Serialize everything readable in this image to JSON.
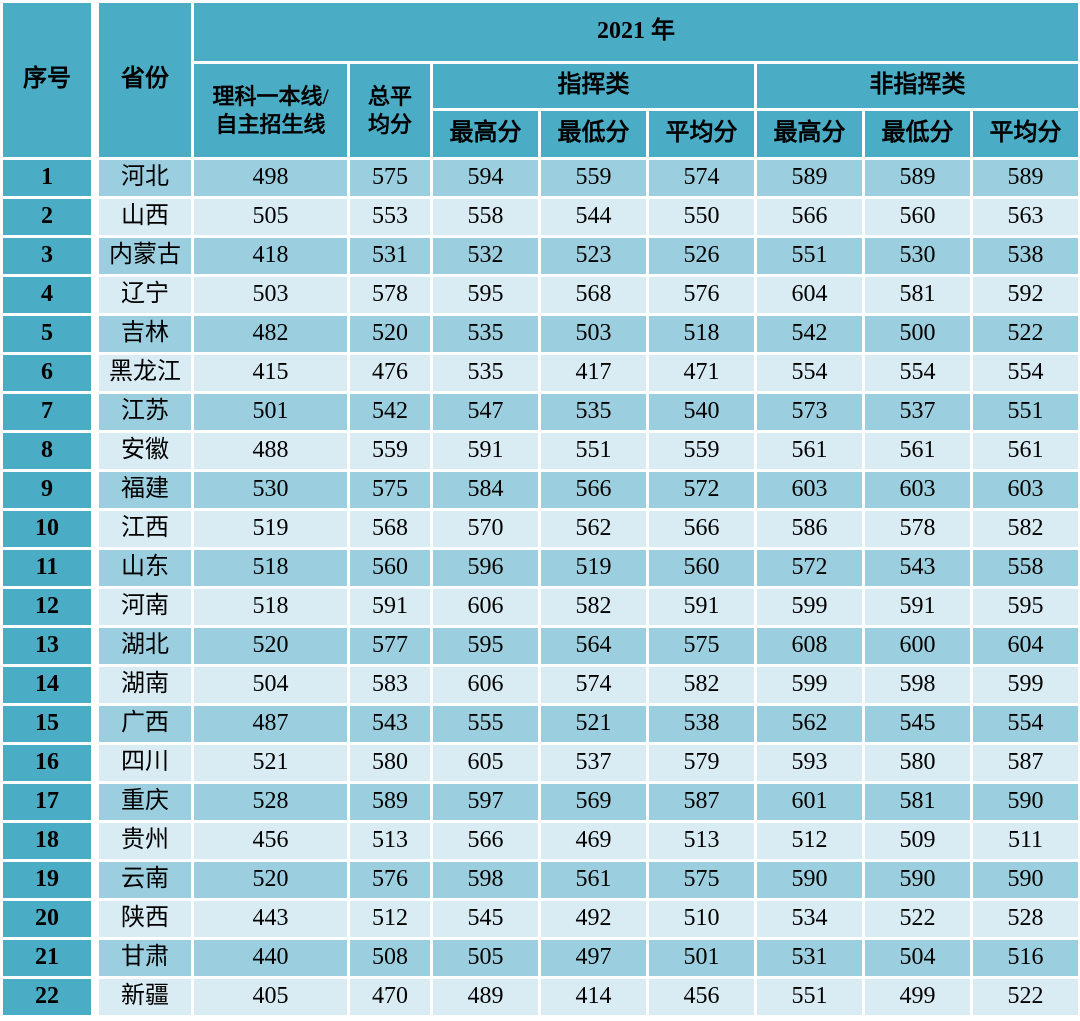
{
  "colors": {
    "header_bg": "#4BACC6",
    "row_odd_bg": "#9BCFDF",
    "row_even_bg": "#D9ECF4",
    "grid_gap": "#FFFFFF",
    "text": "#000000"
  },
  "table": {
    "headers": {
      "index": "序号",
      "province": "省份",
      "year": "2021 年",
      "admission_line_l1": "理科一本线/",
      "admission_line_l2": "自主招生线",
      "total_avg_l1": "总平",
      "total_avg_l2": "均分",
      "command_group": "指挥类",
      "non_command_group": "非指挥类",
      "max": "最高分",
      "min": "最低分",
      "avg": "平均分"
    },
    "rows": [
      {
        "no": "1",
        "province": "河北",
        "values": [
          498,
          575,
          594,
          559,
          574,
          589,
          589,
          589
        ]
      },
      {
        "no": "2",
        "province": "山西",
        "values": [
          505,
          553,
          558,
          544,
          550,
          566,
          560,
          563
        ]
      },
      {
        "no": "3",
        "province": "内蒙古",
        "values": [
          418,
          531,
          532,
          523,
          526,
          551,
          530,
          538
        ]
      },
      {
        "no": "4",
        "province": "辽宁",
        "values": [
          503,
          578,
          595,
          568,
          576,
          604,
          581,
          592
        ]
      },
      {
        "no": "5",
        "province": "吉林",
        "values": [
          482,
          520,
          535,
          503,
          518,
          542,
          500,
          522
        ]
      },
      {
        "no": "6",
        "province": "黑龙江",
        "values": [
          415,
          476,
          535,
          417,
          471,
          554,
          554,
          554
        ]
      },
      {
        "no": "7",
        "province": "江苏",
        "values": [
          501,
          542,
          547,
          535,
          540,
          573,
          537,
          551
        ]
      },
      {
        "no": "8",
        "province": "安徽",
        "values": [
          488,
          559,
          591,
          551,
          559,
          561,
          561,
          561
        ]
      },
      {
        "no": "9",
        "province": "福建",
        "values": [
          530,
          575,
          584,
          566,
          572,
          603,
          603,
          603
        ]
      },
      {
        "no": "10",
        "province": "江西",
        "values": [
          519,
          568,
          570,
          562,
          566,
          586,
          578,
          582
        ]
      },
      {
        "no": "11",
        "province": "山东",
        "values": [
          518,
          560,
          596,
          519,
          560,
          572,
          543,
          558
        ]
      },
      {
        "no": "12",
        "province": "河南",
        "values": [
          518,
          591,
          606,
          582,
          591,
          599,
          591,
          595
        ]
      },
      {
        "no": "13",
        "province": "湖北",
        "values": [
          520,
          577,
          595,
          564,
          575,
          608,
          600,
          604
        ]
      },
      {
        "no": "14",
        "province": "湖南",
        "values": [
          504,
          583,
          606,
          574,
          582,
          599,
          598,
          599
        ]
      },
      {
        "no": "15",
        "province": "广西",
        "values": [
          487,
          543,
          555,
          521,
          538,
          562,
          545,
          554
        ]
      },
      {
        "no": "16",
        "province": "四川",
        "values": [
          521,
          580,
          605,
          537,
          579,
          593,
          580,
          587
        ]
      },
      {
        "no": "17",
        "province": "重庆",
        "values": [
          528,
          589,
          597,
          569,
          587,
          601,
          581,
          590
        ]
      },
      {
        "no": "18",
        "province": "贵州",
        "values": [
          456,
          513,
          566,
          469,
          513,
          512,
          509,
          511
        ]
      },
      {
        "no": "19",
        "province": "云南",
        "values": [
          520,
          576,
          598,
          561,
          575,
          590,
          590,
          590
        ]
      },
      {
        "no": "20",
        "province": "陕西",
        "values": [
          443,
          512,
          545,
          492,
          510,
          534,
          522,
          528
        ]
      },
      {
        "no": "21",
        "province": "甘肃",
        "values": [
          440,
          508,
          505,
          497,
          501,
          531,
          504,
          516
        ]
      },
      {
        "no": "22",
        "province": "新疆",
        "values": [
          405,
          470,
          489,
          414,
          456,
          551,
          499,
          522
        ]
      }
    ]
  }
}
